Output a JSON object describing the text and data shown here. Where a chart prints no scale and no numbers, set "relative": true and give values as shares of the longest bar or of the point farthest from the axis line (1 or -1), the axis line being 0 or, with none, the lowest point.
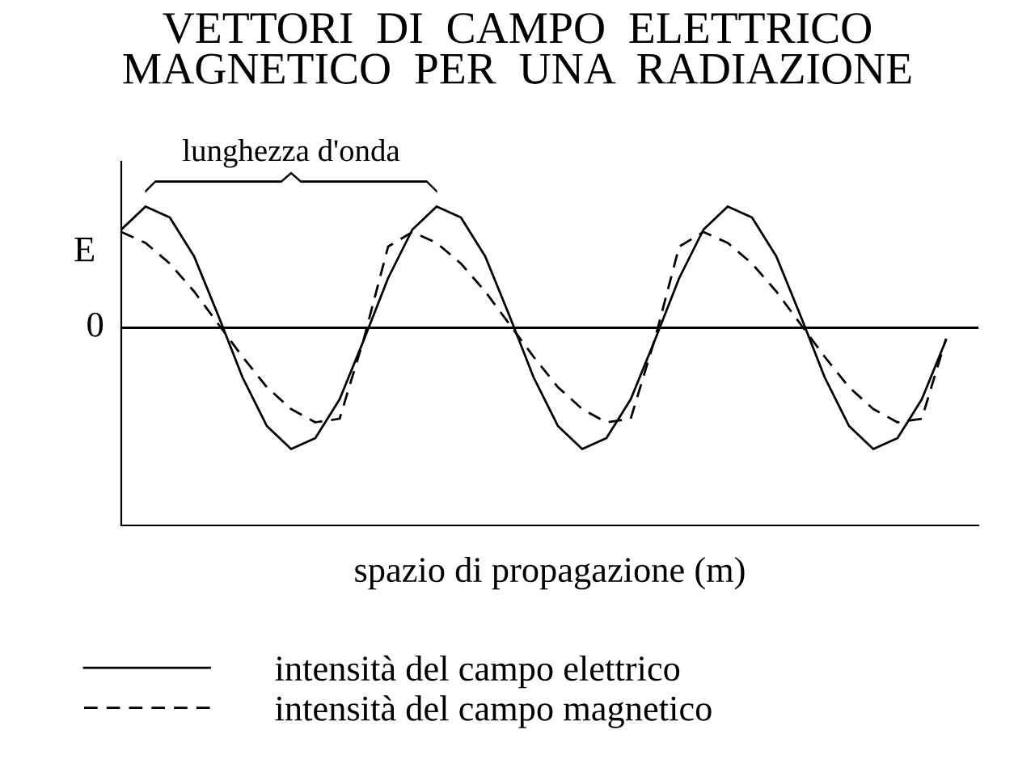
{
  "chart_data": {
    "type": "line",
    "title": "VETTORI  DI  CAMPO  ELETTRICO\nMAGNETICO  PER  UNA  RADIAZIONE",
    "xlabel": "spazio di propagazione (m)",
    "ylabel": "E",
    "relative": true,
    "legend": "bottom",
    "marker": "none",
    "annotations": [
      "lunghezza d'onda"
    ],
    "ref_lines": [
      {
        "axis": "y",
        "value": 0,
        "label": "0",
        "color": "#000000",
        "line_style": "solid"
      }
    ],
    "categories": [
      null,
      null,
      null,
      null,
      null,
      null,
      null,
      null,
      null,
      null,
      null,
      null,
      null,
      null,
      null,
      null,
      null,
      null,
      null,
      null,
      null,
      null,
      null,
      null,
      null,
      null,
      null,
      null,
      null,
      null,
      null,
      null,
      null,
      null,
      null
    ],
    "series": [
      {
        "name": "intensità del campo elettrico",
        "color": "#000000",
        "line_style": "solid",
        "values": [
          0.81,
          1,
          0.91,
          0.59,
          0.1,
          -0.41,
          -0.81,
          -1,
          -0.91,
          -0.59,
          -0.1,
          0.41,
          0.81,
          1,
          0.91,
          0.59,
          0.1,
          -0.41,
          -0.81,
          -1,
          -0.91,
          -0.59,
          -0.1,
          0.41,
          0.81,
          1,
          0.91,
          0.59,
          0.1,
          -0.41,
          -0.81,
          -1,
          -0.91,
          -0.59,
          -0.1
        ]
      },
      {
        "name": "intensità del campo magnetico",
        "color": "#000000",
        "line_style": "dashed",
        "values": [
          0.79,
          0.7,
          0.53,
          0.3,
          0.03,
          -0.24,
          -0.49,
          -0.67,
          -0.78,
          -0.75,
          -0.09,
          0.67,
          0.79,
          0.7,
          0.53,
          0.3,
          0.03,
          -0.24,
          -0.49,
          -0.67,
          -0.78,
          -0.75,
          -0.09,
          0.67,
          0.79,
          0.7,
          0.53,
          0.3,
          0.03,
          -0.24,
          -0.49,
          -0.67,
          -0.78,
          -0.75,
          -0.09
        ]
      }
    ]
  }
}
